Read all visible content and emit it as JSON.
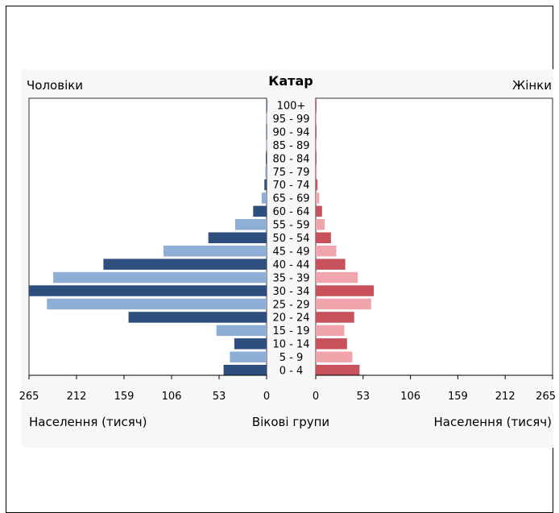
{
  "chart_data": {
    "type": "bar",
    "title": "Катар",
    "left_label": "Чоловіки",
    "right_label": "Жінки",
    "xlabel_left": "Населення (тисяч)",
    "xlabel_center": "Вікові групи",
    "xlabel_right": "Населення (тисяч)",
    "categories": [
      "100+",
      "95 - 99",
      "90 - 94",
      "85 - 89",
      "80 - 84",
      "75 - 79",
      "70 - 74",
      "65 - 69",
      "60 - 64",
      "55 - 59",
      "50 - 54",
      "45 - 49",
      "40 - 44",
      "35 - 39",
      "30 - 34",
      "25 - 29",
      "20 - 24",
      "15 - 19",
      "10 - 14",
      "5 - 9",
      "0 - 4"
    ],
    "series": [
      {
        "name": "Чоловіки",
        "values": [
          0.2,
          0.3,
          0.4,
          0.6,
          0.9,
          1.5,
          2.5,
          5.5,
          15,
          35,
          65,
          115,
          182,
          238,
          265,
          245,
          154,
          56,
          36,
          41,
          48
        ]
      },
      {
        "name": "Жінки",
        "values": [
          0.2,
          0.3,
          0.4,
          0.5,
          0.8,
          1.2,
          2,
          4,
          7,
          10,
          17,
          23,
          33,
          47,
          65,
          62,
          43,
          32,
          35,
          41,
          49
        ]
      }
    ],
    "xlim": [
      0,
      265
    ],
    "ticks": [
      "265",
      "212",
      "159",
      "106",
      "53",
      "0"
    ],
    "ticks_right": [
      "0",
      "53",
      "106",
      "159",
      "212",
      "265"
    ],
    "colors": {
      "male_dark": "#2e4e7e",
      "male_light": "#8faed6",
      "female_dark": "#c7525c",
      "female_light": "#f0a5ac"
    }
  }
}
